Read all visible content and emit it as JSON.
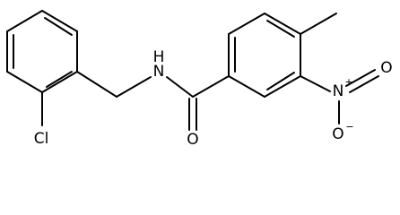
{
  "nodes": [
    {
      "label": "H"
    },
    {
      "label": "N"
    },
    {
      "label": "Cl"
    },
    {
      "label": "O"
    },
    {
      "label": "N",
      "charge": "+"
    },
    {
      "label": "O"
    },
    {
      "label": "O",
      "charge": "−"
    }
  ]
}
